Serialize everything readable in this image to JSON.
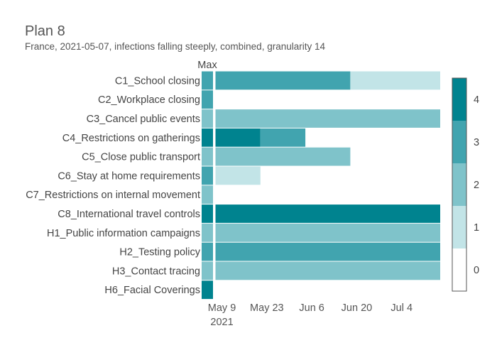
{
  "chart_data": {
    "type": "heatmap",
    "title": "Plan 8",
    "subtitle": "France, 2021-05-07, infections falling steeply, combined, granularity 14",
    "max_column_label": "Max",
    "rows": [
      "C1_School closing",
      "C2_Workplace closing",
      "C3_Cancel public events",
      "C4_Restrictions on gatherings",
      "C5_Close public transport",
      "C6_Stay at home requirements",
      "C7_Restrictions on internal movement",
      "C8_International travel controls",
      "H1_Public information campaigns",
      "H2_Testing policy",
      "H3_Contact tracing",
      "H6_Facial Coverings"
    ],
    "max_values": [
      3,
      3,
      2,
      4,
      2,
      3,
      2,
      4,
      2,
      3,
      2,
      4
    ],
    "plan_start": "2021-05-07",
    "plan_end": "2021-07-16",
    "plan_segments": [
      [
        {
          "start": "2021-05-07",
          "end": "2021-06-18",
          "value": 3
        },
        {
          "start": "2021-06-18",
          "end": "2021-07-16",
          "value": 1
        }
      ],
      [],
      [
        {
          "start": "2021-05-07",
          "end": "2021-07-16",
          "value": 2
        }
      ],
      [
        {
          "start": "2021-05-07",
          "end": "2021-05-21",
          "value": 4
        },
        {
          "start": "2021-05-21",
          "end": "2021-06-04",
          "value": 3
        }
      ],
      [
        {
          "start": "2021-05-07",
          "end": "2021-06-18",
          "value": 2
        }
      ],
      [
        {
          "start": "2021-05-07",
          "end": "2021-05-21",
          "value": 1
        }
      ],
      [],
      [
        {
          "start": "2021-05-07",
          "end": "2021-07-16",
          "value": 4
        }
      ],
      [
        {
          "start": "2021-05-07",
          "end": "2021-07-16",
          "value": 2
        }
      ],
      [
        {
          "start": "2021-05-07",
          "end": "2021-07-16",
          "value": 3
        }
      ],
      [
        {
          "start": "2021-05-07",
          "end": "2021-07-16",
          "value": 2
        }
      ],
      []
    ],
    "x_ticks": [
      {
        "date": "2021-05-09",
        "label": "May 9",
        "sublabel": "2021"
      },
      {
        "date": "2021-05-23",
        "label": "May 23",
        "sublabel": ""
      },
      {
        "date": "2021-06-06",
        "label": "Jun 6",
        "sublabel": ""
      },
      {
        "date": "2021-06-20",
        "label": "Jun 20",
        "sublabel": ""
      },
      {
        "date": "2021-07-04",
        "label": "Jul 4",
        "sublabel": ""
      }
    ],
    "colorscale": {
      "range": [
        0,
        4
      ],
      "ticks": [
        0,
        1,
        2,
        3,
        4
      ],
      "colors": [
        "#ffffff",
        "#c2e4e7",
        "#7fc3ca",
        "#41a4af",
        "#00838f"
      ]
    }
  }
}
